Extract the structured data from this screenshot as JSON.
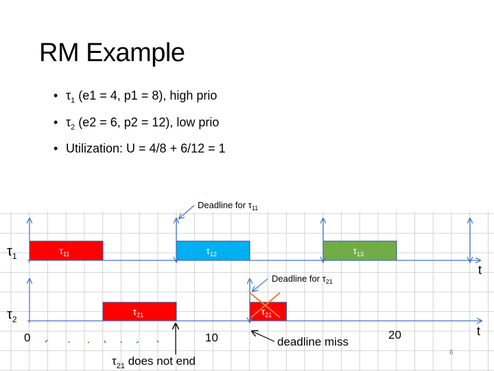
{
  "slide": {
    "title": "RM Example",
    "bullets": [
      {
        "pre": "τ",
        "sub": "1",
        "text": " (e1 = 4, p1 = 8), high prio"
      },
      {
        "pre": "τ",
        "sub": "2",
        "text": " (e2 = 6, p2 = 12), low prio"
      },
      {
        "pre": "",
        "sub": "",
        "text": "Utilization: U = 4/8 + 6/12 = 1"
      }
    ],
    "page_number": "6"
  },
  "diagram": {
    "row_labels": [
      {
        "pre": "τ",
        "sub": "1"
      },
      {
        "pre": "τ",
        "sub": "2"
      }
    ],
    "axis_end_label": "t",
    "ticks": [
      {
        "t": 0,
        "label": "0"
      },
      {
        "t": 10,
        "label": "10"
      },
      {
        "t": 20,
        "label": "20"
      }
    ],
    "jobs": [
      {
        "task": 1,
        "start": 0,
        "end": 4,
        "pre": "τ",
        "sub": "11",
        "color": "#ff0000"
      },
      {
        "task": 1,
        "start": 8,
        "end": 12,
        "pre": "τ",
        "sub": "12",
        "color": "#00b0f0"
      },
      {
        "task": 1,
        "start": 16,
        "end": 20,
        "pre": "τ",
        "sub": "13",
        "color": "#70ad47"
      },
      {
        "task": 2,
        "start": 4,
        "end": 8,
        "pre": "τ",
        "sub": "21",
        "color": "#ff0000"
      },
      {
        "task": 2,
        "start": 12,
        "end": 14,
        "pre": "τ",
        "sub": "21",
        "color": "#ff0000"
      }
    ],
    "release_arrows_task1": [
      0,
      8,
      16,
      24
    ],
    "release_arrows_task2": [
      0,
      12
    ],
    "annotations": {
      "deadline_t11": {
        "text": "Deadline for τ",
        "sub": "11"
      },
      "deadline_t21": {
        "text": "Deadline for τ",
        "sub": "21"
      },
      "deadline_miss": "deadline miss",
      "not_end": {
        "pre": "τ",
        "sub": "21",
        "text": " does not end"
      }
    },
    "colors": {
      "grid": "#c8c8c8",
      "axis": "#4472c4",
      "cross": "#ed7d31",
      "text": "#000000"
    }
  }
}
